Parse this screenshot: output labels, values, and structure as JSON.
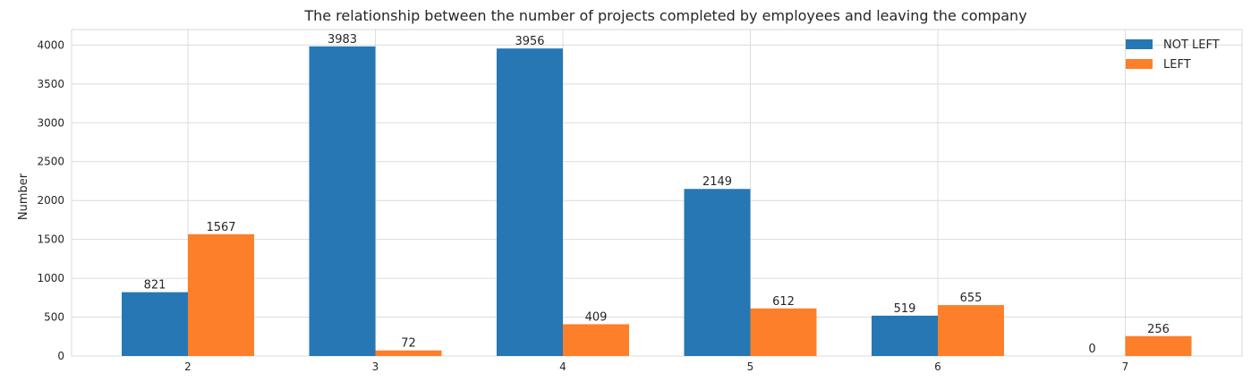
{
  "chart_data": {
    "type": "bar",
    "title": "The relationship between the number of projects completed by employees and leaving the company",
    "xlabel": "",
    "ylabel": "Number",
    "categories": [
      "2",
      "3",
      "4",
      "5",
      "6",
      "7"
    ],
    "series": [
      {
        "name": "NOT LEFT",
        "color": "#2677b4",
        "values": [
          821,
          3983,
          3956,
          2149,
          519,
          0
        ]
      },
      {
        "name": "LEFT",
        "color": "#fe7f29",
        "values": [
          1567,
          72,
          409,
          612,
          655,
          256
        ]
      }
    ],
    "ylim": [
      0,
      4200
    ],
    "yticks": [
      0,
      500,
      1000,
      1500,
      2000,
      2500,
      3000,
      3500,
      4000
    ],
    "grid": true,
    "legend": "top-right"
  }
}
